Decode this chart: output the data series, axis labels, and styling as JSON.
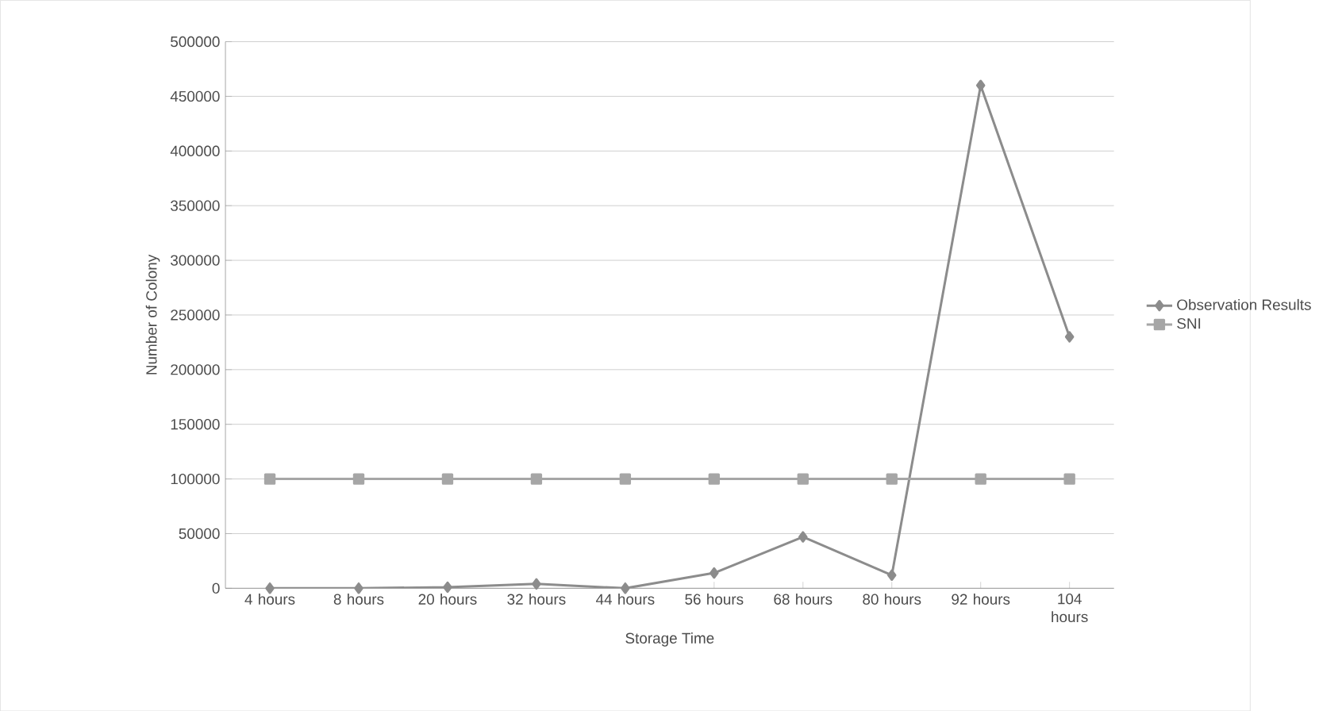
{
  "chart_data": {
    "type": "line",
    "xlabel": "Storage Time",
    "ylabel": "Number of Colony",
    "categories": [
      "4 hours",
      "8 hours",
      "20 hours",
      "32 hours",
      "44 hours",
      "56 hours",
      "68 hours",
      "80 hours",
      "92 hours",
      "104 hours"
    ],
    "series": [
      {
        "name": "Observation Results",
        "color": "#8c8c8c",
        "marker": "diamond",
        "values": [
          0,
          0,
          1000,
          4000,
          0,
          14000,
          47000,
          12000,
          460000,
          230000
        ]
      },
      {
        "name": "SNI",
        "color": "#a6a6a6",
        "marker": "square",
        "values": [
          100000,
          100000,
          100000,
          100000,
          100000,
          100000,
          100000,
          100000,
          100000,
          100000
        ]
      }
    ],
    "ylim": [
      0,
      500000
    ],
    "yticks": [
      0,
      50000,
      100000,
      150000,
      200000,
      250000,
      300000,
      350000,
      400000,
      450000,
      500000
    ],
    "grid": "y",
    "legend": "right"
  }
}
